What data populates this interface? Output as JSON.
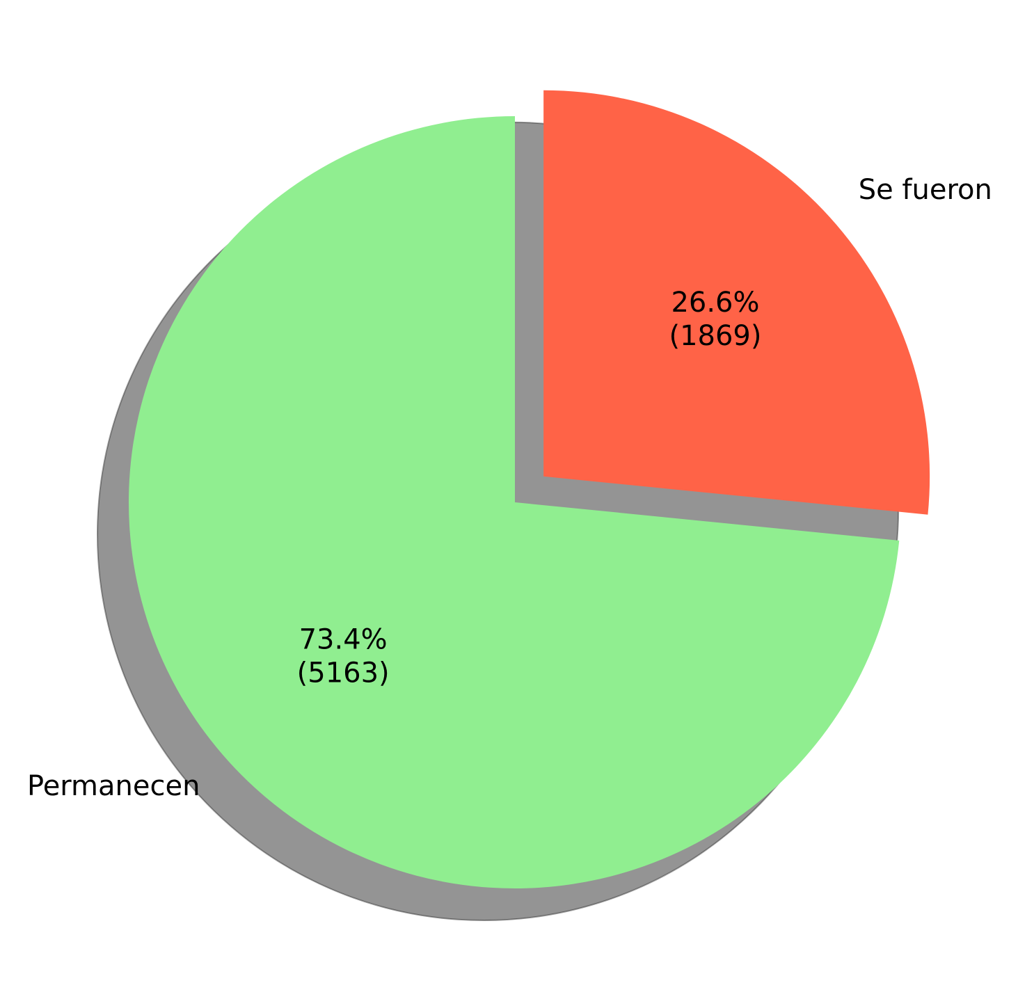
{
  "chart_data": {
    "type": "pie",
    "title": "",
    "start_angle_deg": 90,
    "direction": "clockwise",
    "shadow": true,
    "slices": [
      {
        "label": "Se fueron",
        "value": 1869,
        "percent": "26.6%",
        "count_text": "(1869)",
        "color": "#ff6347",
        "exploded": true
      },
      {
        "label": "Permanecen",
        "value": 5163,
        "percent": "73.4%",
        "count_text": "(5163)",
        "color": "#90ee90",
        "exploded": false
      }
    ]
  }
}
